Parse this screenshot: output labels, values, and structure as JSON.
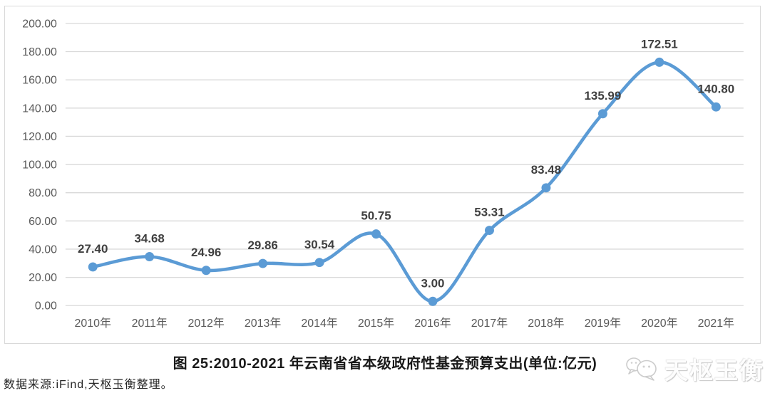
{
  "figure": {
    "caption": "图 25:2010-2021 年云南省省本级政府性基金预算支出(单位:亿元)",
    "source_note": "数据来源:iFind,天枢玉衡整理。",
    "watermark": "天枢玉衡"
  },
  "chart_data": {
    "type": "line",
    "title": "图 25:2010-2021 年云南省省本级政府性基金预算支出(单位:亿元)",
    "categories": [
      "2010年",
      "2011年",
      "2012年",
      "2013年",
      "2014年",
      "2015年",
      "2016年",
      "2017年",
      "2018年",
      "2019年",
      "2020年",
      "2021年"
    ],
    "series": [
      {
        "name": "省本级政府性基金预算支出",
        "values": [
          27.4,
          34.68,
          24.96,
          29.86,
          30.54,
          50.75,
          3.0,
          53.31,
          83.48,
          135.99,
          172.51,
          140.8
        ],
        "data_labels": [
          "27.40",
          "34.68",
          "24.96",
          "29.86",
          "30.54",
          "50.75",
          "3.00",
          "53.31",
          "83.48",
          "135.99",
          "172.51",
          "140.80"
        ]
      }
    ],
    "xlabel": "",
    "ylabel": "",
    "ylim": [
      0,
      200
    ],
    "ytick_values": [
      0,
      20,
      40,
      60,
      80,
      100,
      120,
      140,
      160,
      180,
      200
    ],
    "ytick_labels": [
      "0.00",
      "20.00",
      "40.00",
      "60.00",
      "80.00",
      "100.00",
      "120.00",
      "140.00",
      "160.00",
      "180.00",
      "200.00"
    ],
    "grid": true,
    "smooth": true,
    "legend": "none",
    "colors": {
      "line": "#5b9bd5",
      "marker": "#5b9bd5",
      "gridline": "#d9d9d9",
      "tick_label": "#595959",
      "data_label": "#404040"
    }
  }
}
